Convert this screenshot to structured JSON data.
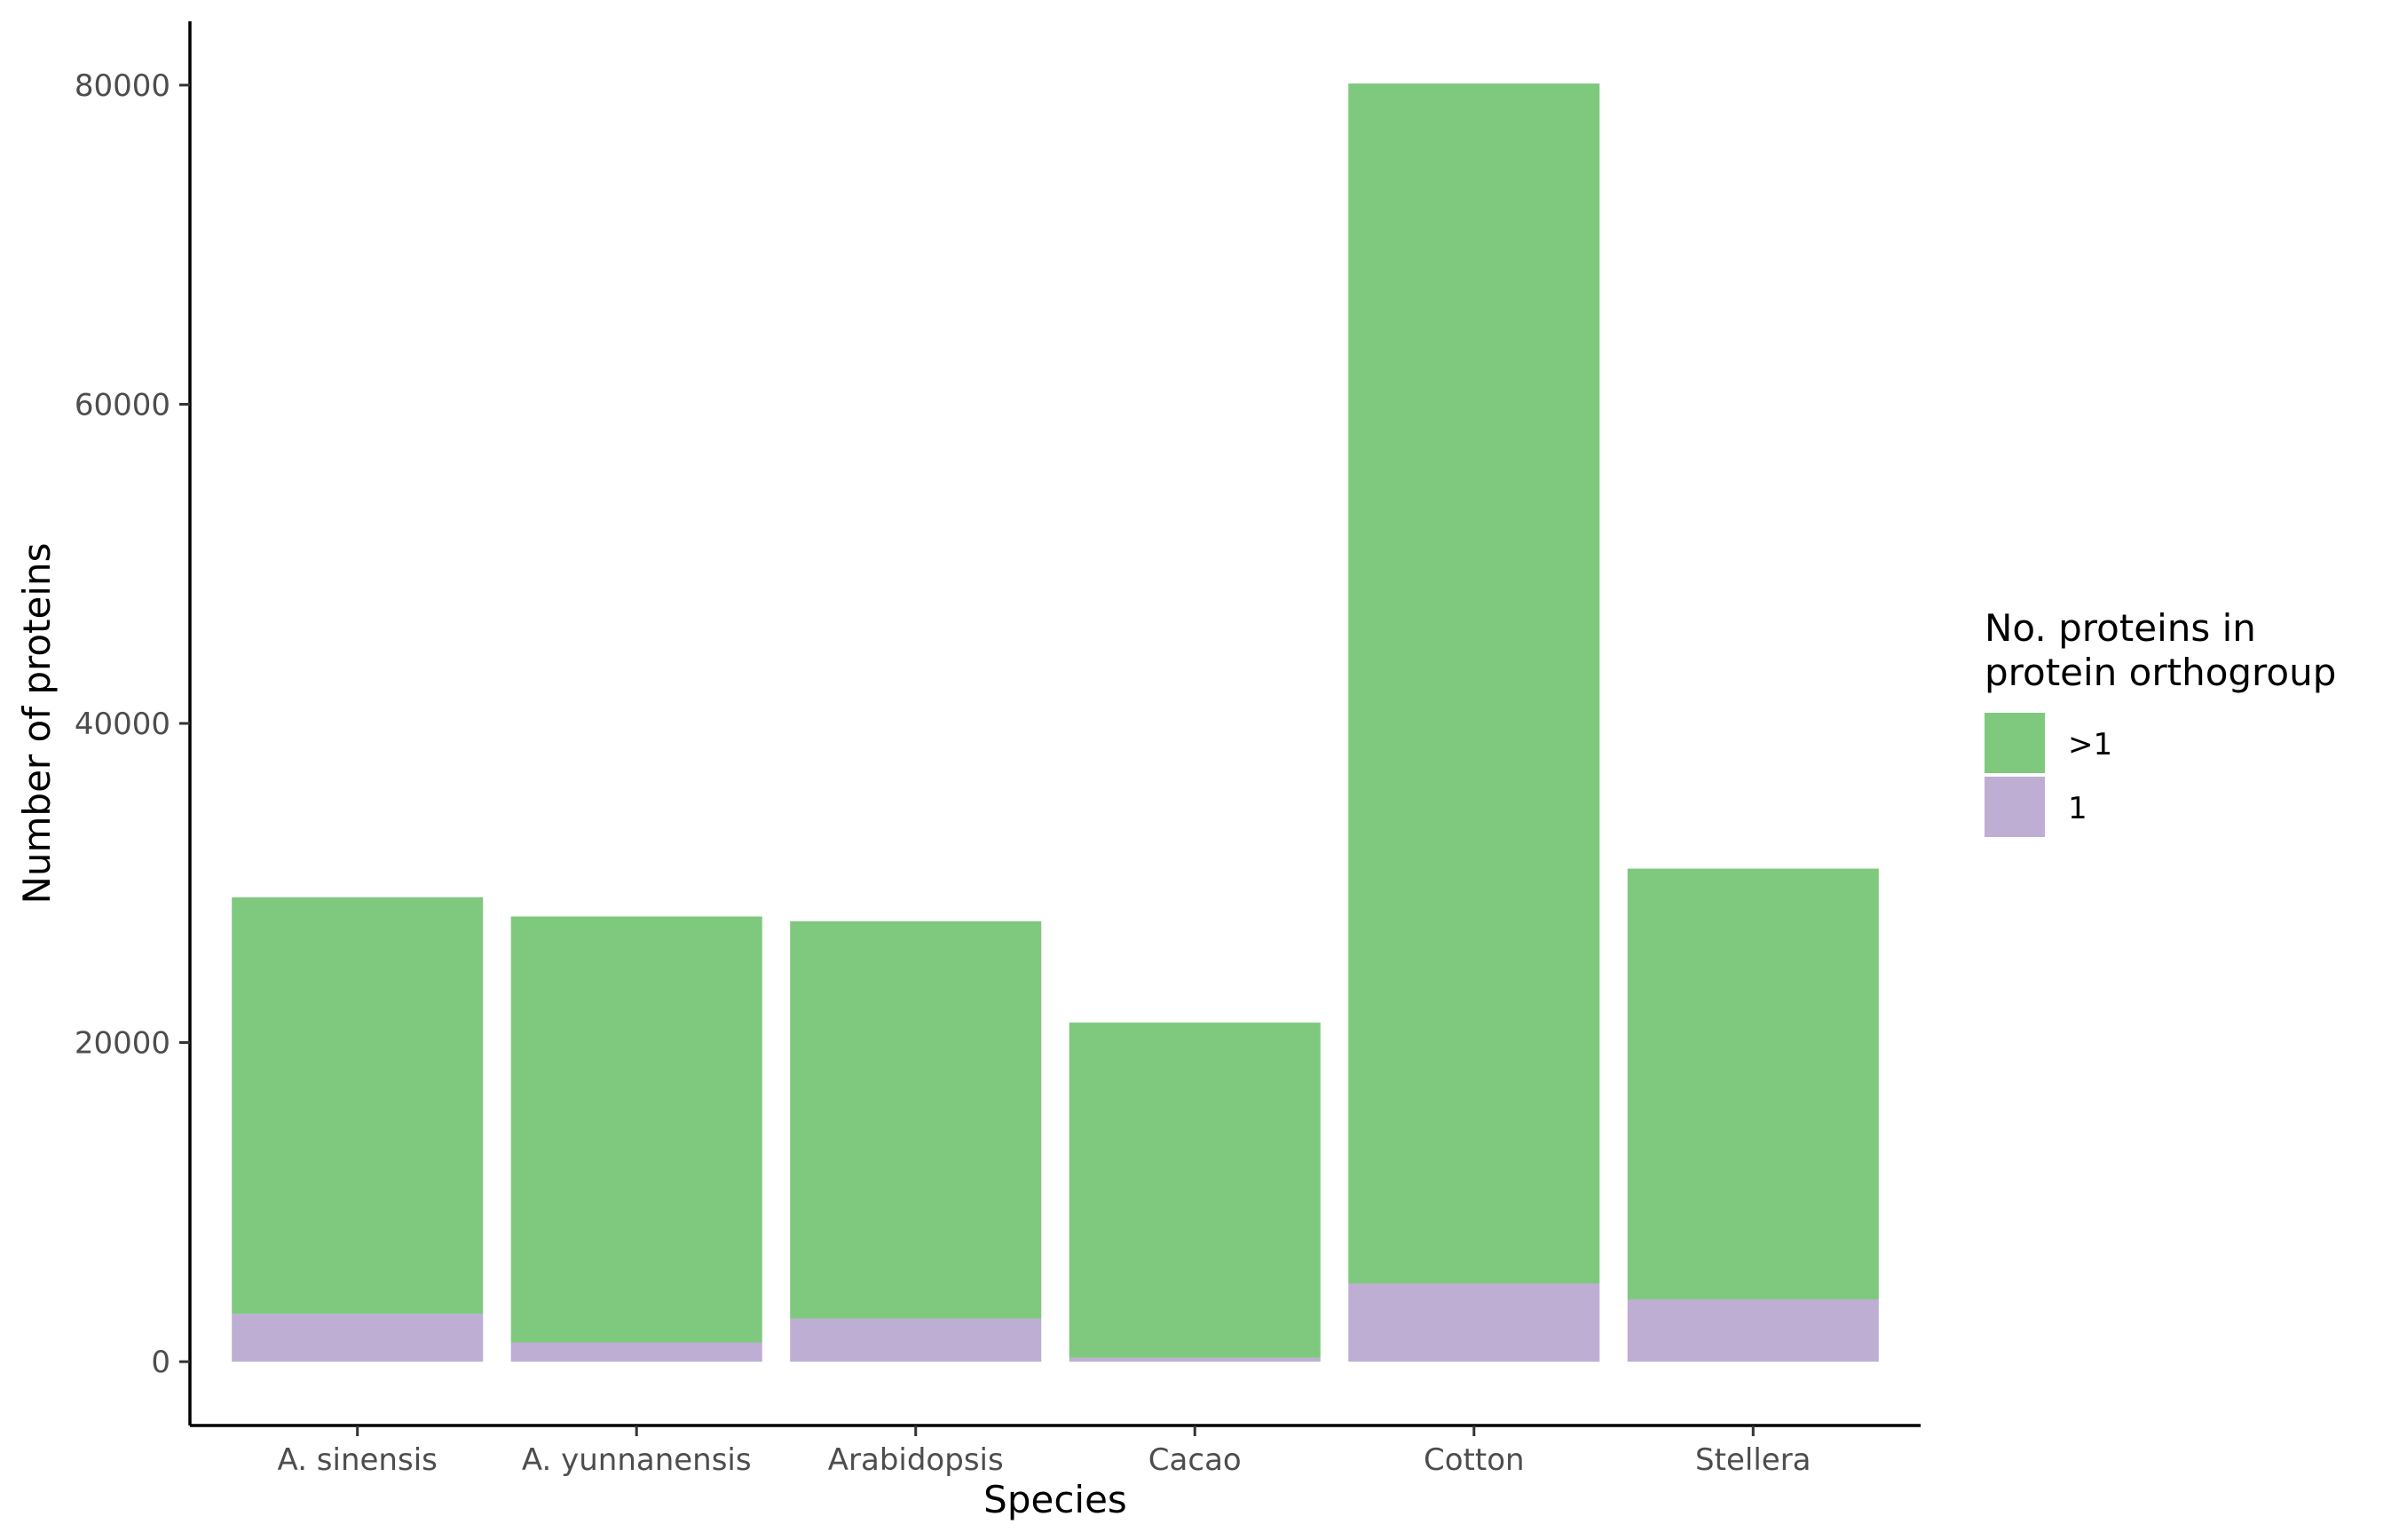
{
  "chart_data": {
    "type": "bar",
    "stacked": true,
    "title": "",
    "xlabel": "Species",
    "ylabel": "Number of proteins",
    "categories": [
      "A. sinensis",
      "A. yunnanensis",
      "Arabidopsis",
      "Cacao",
      "Cotton",
      "Stellera"
    ],
    "series": [
      {
        "name": "1",
        "color": "#beaed4",
        "values": [
          3000,
          1200,
          2700,
          250,
          4900,
          3900
        ]
      },
      {
        "name": ">1",
        "color": "#7fc97f",
        "values": [
          26100,
          26700,
          24900,
          21000,
          75200,
          27000
        ]
      }
    ],
    "ylim": [
      -4000,
      84000
    ],
    "yticks": [
      0,
      20000,
      40000,
      60000,
      80000
    ],
    "ytick_labels": [
      "0",
      "20000",
      "40000",
      "60000",
      "80000"
    ],
    "grid": false,
    "legend": {
      "title_lines": [
        "No. proteins in",
        "protein orthogroup"
      ],
      "placement": "right",
      "order": [
        ">1",
        "1"
      ]
    }
  }
}
